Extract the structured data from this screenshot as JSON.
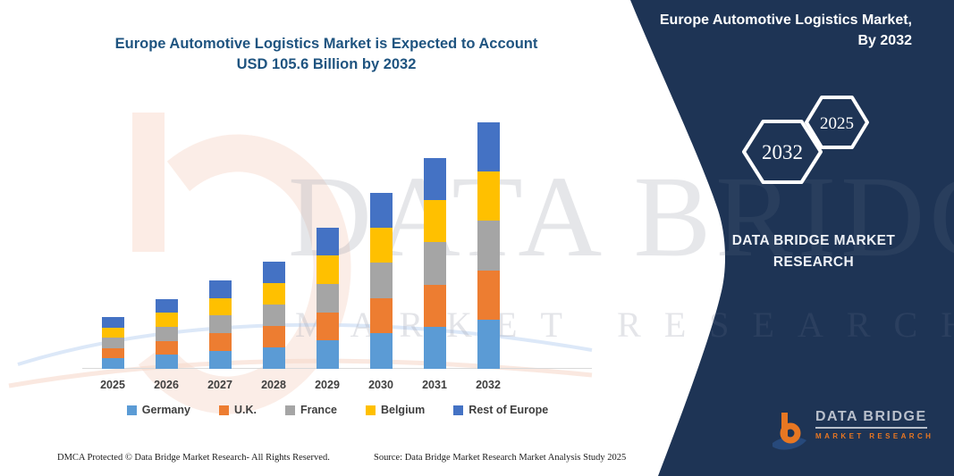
{
  "header": {
    "title_line1": "Europe Automotive Logistics Market is Expected to Account",
    "title_line2": "USD 105.6 Billion by 2032"
  },
  "chart_data": {
    "type": "bar",
    "stacked": true,
    "title": "Europe Automotive Logistics Market is Expected to Account USD 105.6 Billion by 2032",
    "unit": "USD Billion",
    "categories": [
      "2025",
      "2026",
      "2027",
      "2028",
      "2029",
      "2030",
      "2031",
      "2032"
    ],
    "series": [
      {
        "name": "Germany",
        "color": "#5B9BD5",
        "values": [
          4.4,
          6.0,
          7.6,
          9.2,
          12.1,
          15.1,
          18.1,
          21.1
        ]
      },
      {
        "name": "U.K.",
        "color": "#ED7D31",
        "values": [
          4.4,
          6.0,
          7.6,
          9.2,
          12.1,
          15.1,
          18.0,
          21.1
        ]
      },
      {
        "name": "France",
        "color": "#A5A5A5",
        "values": [
          4.5,
          6.0,
          7.6,
          9.2,
          12.1,
          15.1,
          18.1,
          21.2
        ]
      },
      {
        "name": "Belgium",
        "color": "#FFC000",
        "values": [
          4.4,
          5.9,
          7.5,
          9.2,
          12.1,
          15.0,
          18.0,
          21.1
        ]
      },
      {
        "name": "Rest of Europe",
        "color": "#4472C4",
        "values": [
          4.5,
          6.0,
          7.6,
          9.2,
          12.1,
          15.1,
          18.1,
          21.1
        ]
      }
    ],
    "totals": [
      22.2,
      29.9,
      37.9,
      46.0,
      60.5,
      75.4,
      90.3,
      105.6
    ],
    "ylim": [
      0,
      110
    ],
    "grid": false,
    "legend_position": "bottom"
  },
  "watermark": {
    "line1": "DATA BRIDGE",
    "line2": "MARKET RESEARCH"
  },
  "panel": {
    "title": "Europe Automotive Logistics Market, By 2032",
    "hexagon_back_label": "2025",
    "hexagon_front_label": "2032",
    "brand_line1": "DATA BRIDGE MARKET",
    "brand_line2": "RESEARCH",
    "logo": {
      "name": "DATA BRIDGE",
      "tagline": "MARKET RESEARCH"
    },
    "colors": {
      "background": "#1e3455",
      "accent_orange": "#e87722",
      "silver": "#b9c0cc"
    }
  },
  "footer": {
    "left": "DMCA Protected © Data Bridge Market Research-  All Rights Reserved.",
    "right": "Source: Data Bridge Market Research  Market Analysis Study 2025"
  },
  "colors": {
    "title": "#1F5480",
    "axis_label": "#3f3f3f",
    "axis_line": "#d9d9d9"
  }
}
